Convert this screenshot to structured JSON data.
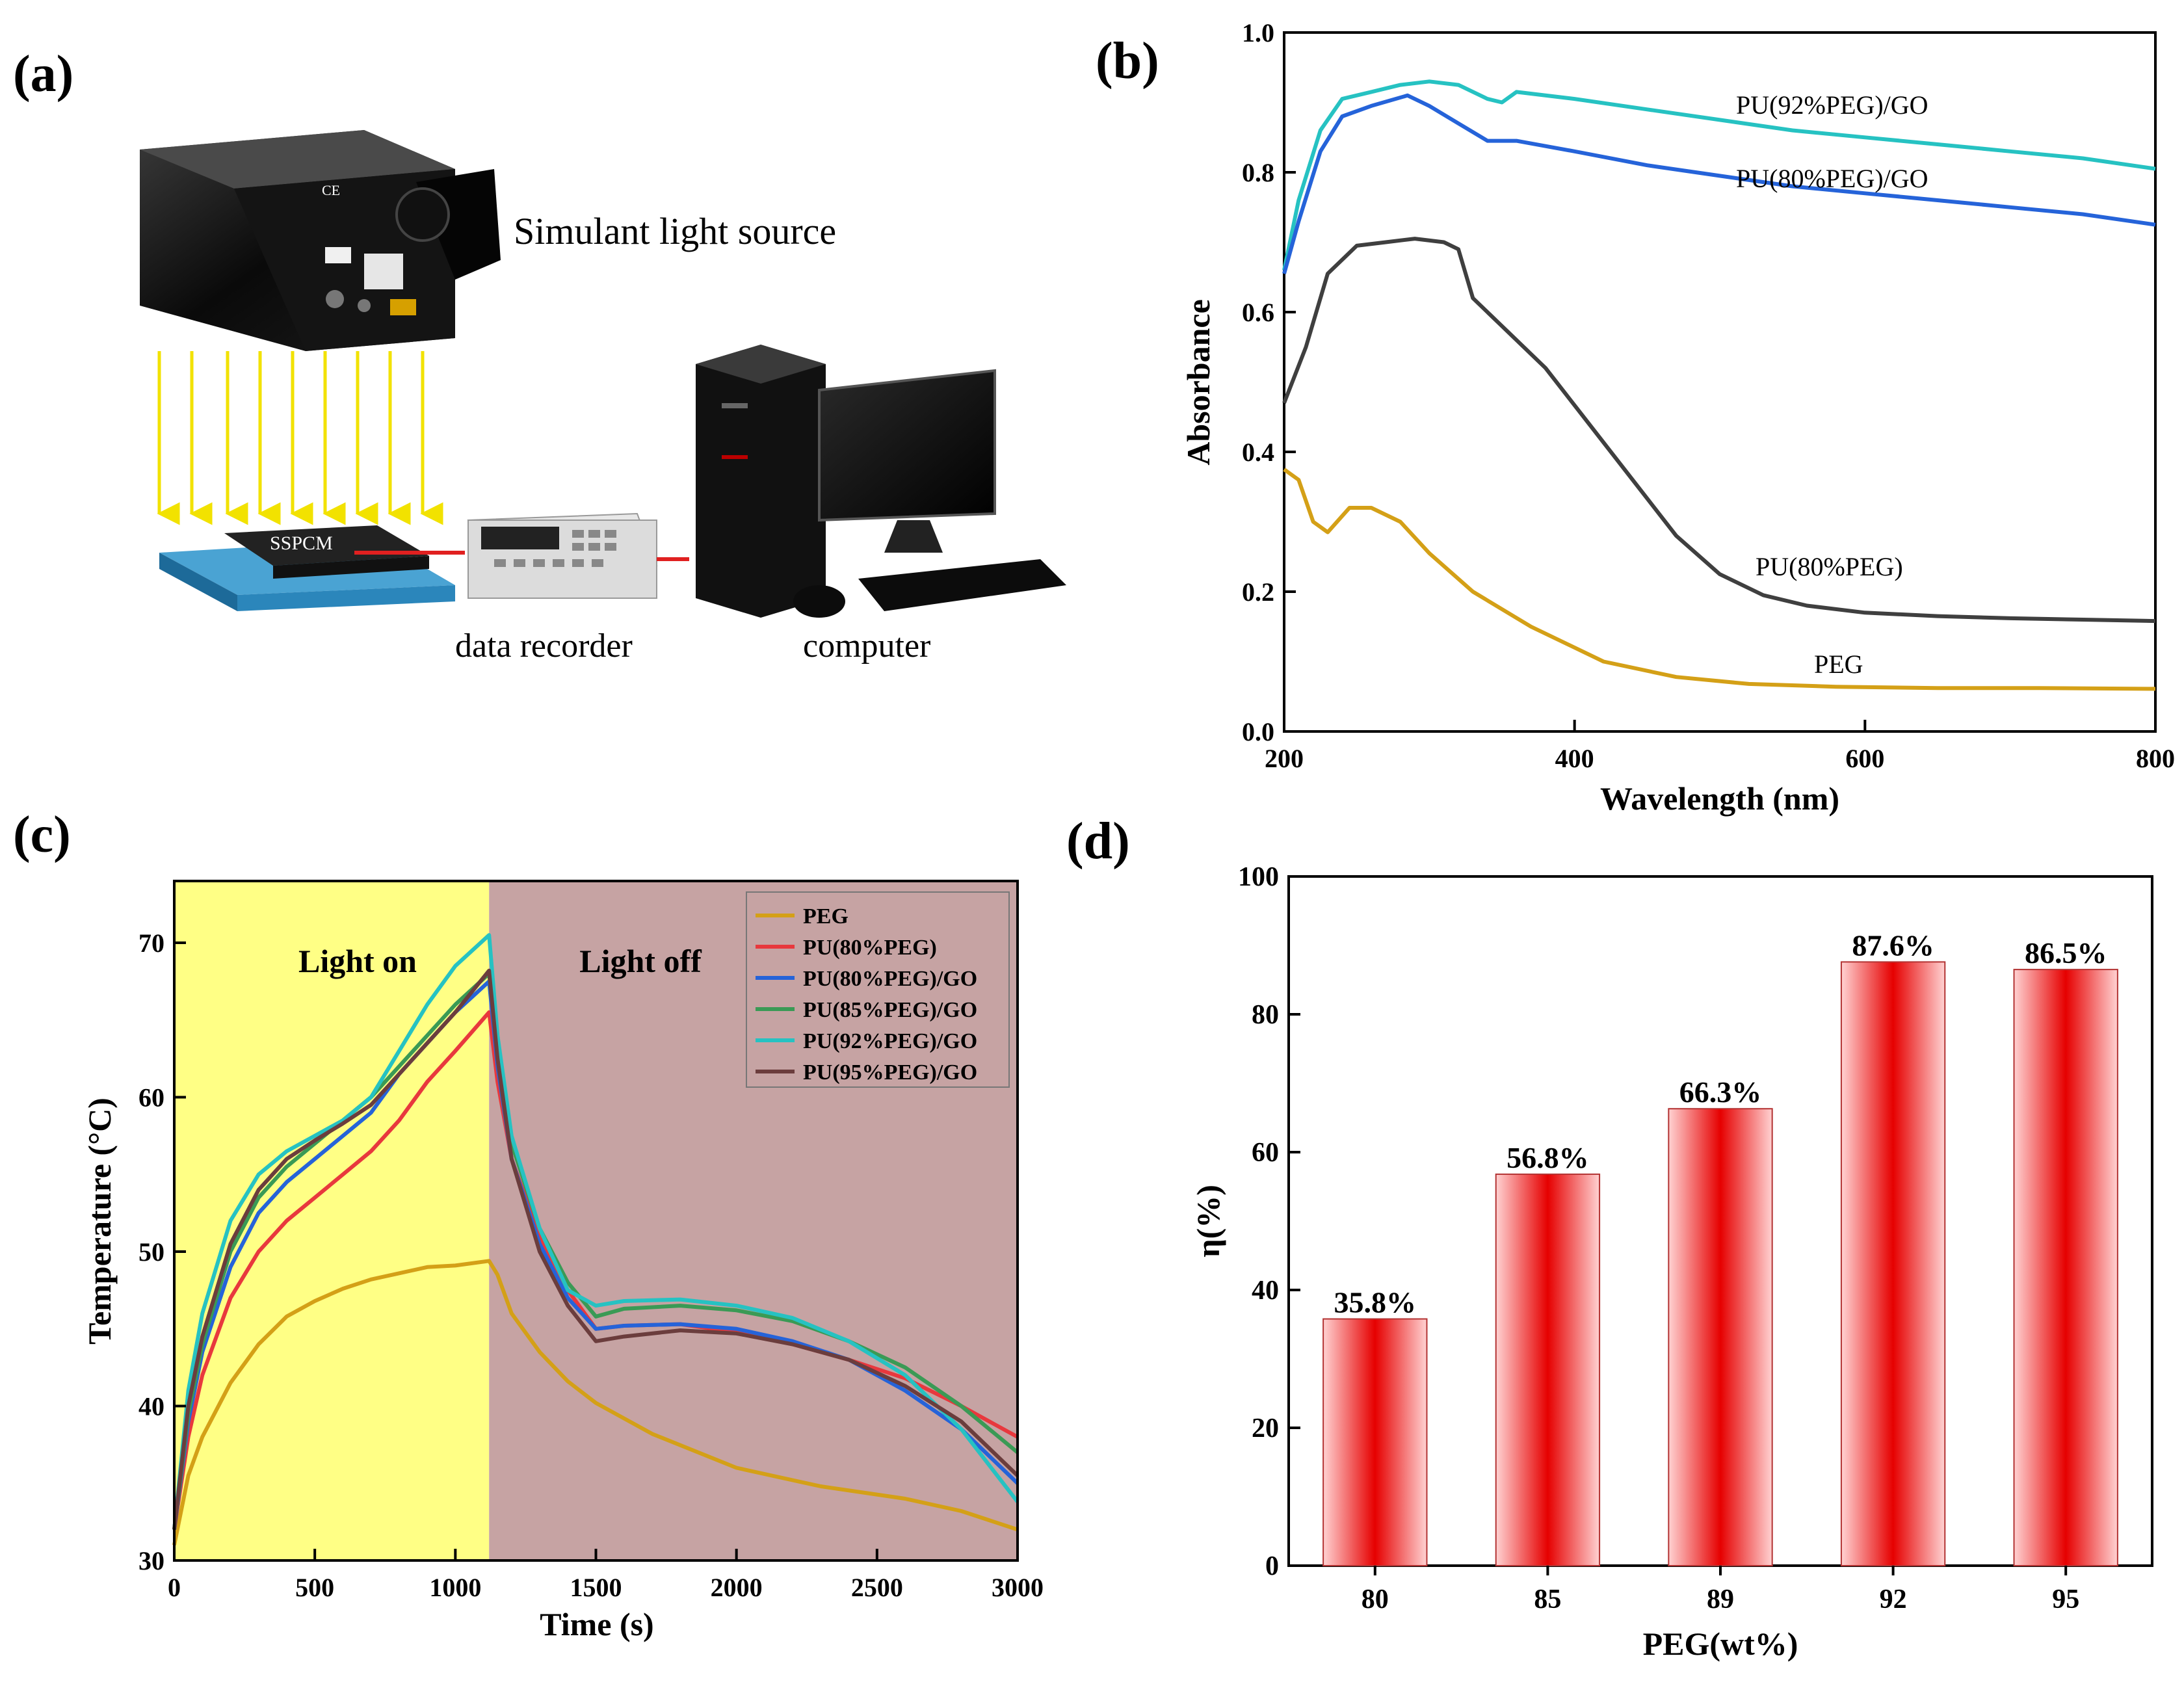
{
  "panels": {
    "a": {
      "label": "(a)",
      "light_source_label": "Simulant light source",
      "sample_label": "SSPCM",
      "recorder_label": "data recorder",
      "computer_label": "computer",
      "device_mark": "CE"
    },
    "b": {
      "label": "(b)"
    },
    "c": {
      "label": "(c)"
    },
    "d": {
      "label": "(d)"
    }
  },
  "colors": {
    "PEG": "#d4a017",
    "PU(80%PEG)": "#3f3f3f",
    "PU(80%PEG)/GO": "#2563d9",
    "PU(92%PEG)/GO": "#26c2c2",
    "c_PU(80%PEG)": "#e8383d",
    "c_PU(85%PEG)/GO": "#3a9a55",
    "c_PU(95%PEG)/GO": "#6b3d3d",
    "light_on_bg": "#ffff85",
    "light_off_bg": "#c6a3a3",
    "bar_edge": "#b33333",
    "bar_center": "#e60000",
    "bar_side": "#ffcccc"
  },
  "chart_data": [
    {
      "id": "b",
      "type": "line",
      "xlabel": "Wavelength (nm)",
      "ylabel": "Absorbance",
      "xlim": [
        200,
        800
      ],
      "ylim": [
        0.0,
        1.0
      ],
      "xticks": [
        200,
        400,
        600,
        800
      ],
      "yticks": [
        0.0,
        0.2,
        0.4,
        0.6,
        0.8,
        1.0
      ],
      "ytick_labels": [
        "0.0",
        "0.2",
        "0.4",
        "0.6",
        "0.8",
        "1.0"
      ],
      "series": [
        {
          "name": "PU(92%PEG)/GO",
          "label": "PU(92%PEG)/GO",
          "x": [
            200,
            210,
            225,
            240,
            260,
            280,
            300,
            320,
            340,
            350,
            360,
            400,
            450,
            500,
            550,
            600,
            650,
            700,
            750,
            800
          ],
          "y": [
            0.66,
            0.76,
            0.86,
            0.905,
            0.915,
            0.925,
            0.93,
            0.925,
            0.905,
            0.9,
            0.915,
            0.905,
            0.89,
            0.875,
            0.86,
            0.85,
            0.84,
            0.83,
            0.82,
            0.805
          ]
        },
        {
          "name": "PU(80%PEG)/GO",
          "label": "PU(80%PEG)/GO",
          "x": [
            200,
            210,
            225,
            240,
            260,
            285,
            300,
            320,
            340,
            360,
            400,
            450,
            500,
            550,
            600,
            650,
            700,
            750,
            800
          ],
          "y": [
            0.655,
            0.73,
            0.83,
            0.88,
            0.895,
            0.91,
            0.895,
            0.87,
            0.845,
            0.845,
            0.83,
            0.81,
            0.795,
            0.78,
            0.77,
            0.76,
            0.75,
            0.74,
            0.725
          ]
        },
        {
          "name": "PU(80%PEG)",
          "label": "PU(80%PEG)",
          "x": [
            200,
            215,
            230,
            250,
            270,
            290,
            310,
            320,
            330,
            350,
            380,
            410,
            440,
            470,
            500,
            530,
            560,
            600,
            650,
            700,
            750,
            800
          ],
          "y": [
            0.47,
            0.55,
            0.655,
            0.695,
            0.7,
            0.705,
            0.7,
            0.69,
            0.62,
            0.58,
            0.52,
            0.44,
            0.36,
            0.28,
            0.225,
            0.195,
            0.18,
            0.17,
            0.165,
            0.162,
            0.16,
            0.158
          ]
        },
        {
          "name": "PEG",
          "label": "PEG",
          "x": [
            200,
            210,
            220,
            230,
            245,
            260,
            280,
            300,
            330,
            370,
            420,
            470,
            520,
            580,
            650,
            720,
            800
          ],
          "y": [
            0.375,
            0.36,
            0.3,
            0.285,
            0.32,
            0.32,
            0.3,
            0.255,
            0.2,
            0.15,
            0.1,
            0.078,
            0.068,
            0.064,
            0.062,
            0.062,
            0.061
          ]
        }
      ]
    },
    {
      "id": "c",
      "type": "line",
      "xlabel": "Time (s)",
      "ylabel": "Temperature (°C)",
      "xlim": [
        0,
        3000
      ],
      "ylim": [
        30,
        74
      ],
      "xticks": [
        0,
        500,
        1000,
        1500,
        2000,
        2500,
        3000
      ],
      "yticks": [
        30,
        40,
        50,
        60,
        70
      ],
      "annotations": [
        "Light on",
        "Light off"
      ],
      "light_switch_x": 1120,
      "legend": [
        "PEG",
        "PU(80%PEG)",
        "PU(80%PEG)/GO",
        "PU(85%PEG)/GO",
        "PU(92%PEG)/GO",
        "PU(95%PEG)/GO"
      ],
      "series": [
        {
          "name": "PEG",
          "x": [
            0,
            50,
            100,
            200,
            300,
            400,
            500,
            600,
            700,
            800,
            900,
            1000,
            1120,
            1150,
            1200,
            1300,
            1400,
            1500,
            1700,
            2000,
            2300,
            2600,
            2800,
            3000
          ],
          "y": [
            31,
            35.5,
            38,
            41.5,
            44,
            45.8,
            46.8,
            47.6,
            48.2,
            48.6,
            49,
            49.1,
            49.4,
            48.5,
            46,
            43.5,
            41.6,
            40.2,
            38.2,
            36,
            34.8,
            34,
            33.2,
            32
          ]
        },
        {
          "name": "PU(80%PEG)",
          "x": [
            0,
            50,
            100,
            200,
            300,
            400,
            500,
            600,
            700,
            800,
            900,
            1000,
            1120,
            1150,
            1200,
            1300,
            1400,
            1500,
            1600,
            1800,
            2000,
            2200,
            2400,
            2600,
            2800,
            3000
          ],
          "y": [
            32,
            38,
            42,
            47,
            50,
            52,
            53.5,
            55,
            56.5,
            58.5,
            61,
            63,
            65.5,
            61,
            56,
            51,
            47.5,
            45,
            45.2,
            45.3,
            44.8,
            44,
            43,
            41.8,
            40,
            38
          ]
        },
        {
          "name": "PU(80%PEG)/GO",
          "x": [
            0,
            50,
            100,
            200,
            300,
            400,
            500,
            600,
            700,
            800,
            900,
            1000,
            1120,
            1150,
            1200,
            1300,
            1400,
            1500,
            1600,
            1800,
            2000,
            2200,
            2400,
            2600,
            2800,
            3000
          ],
          "y": [
            32,
            39,
            43.5,
            49,
            52.5,
            54.5,
            56,
            57.5,
            59,
            61.5,
            63.5,
            65.5,
            67.5,
            62,
            56,
            50.5,
            47,
            45,
            45.2,
            45.3,
            45,
            44.2,
            43,
            41,
            38.5,
            35
          ]
        },
        {
          "name": "PU(85%PEG)/GO",
          "x": [
            0,
            50,
            100,
            200,
            300,
            400,
            500,
            600,
            700,
            800,
            900,
            1000,
            1120,
            1150,
            1200,
            1300,
            1400,
            1500,
            1600,
            1800,
            2000,
            2200,
            2400,
            2600,
            2800,
            3000
          ],
          "y": [
            32,
            39.5,
            44,
            50,
            53.5,
            55.5,
            57,
            58.5,
            60,
            62,
            64,
            66,
            68,
            63,
            57,
            51.5,
            48,
            45.8,
            46.3,
            46.5,
            46.2,
            45.5,
            44.2,
            42.5,
            40,
            37
          ]
        },
        {
          "name": "PU(92%PEG)/GO",
          "x": [
            0,
            50,
            100,
            200,
            300,
            400,
            500,
            600,
            700,
            800,
            900,
            1000,
            1120,
            1150,
            1200,
            1300,
            1400,
            1500,
            1600,
            1800,
            2000,
            2200,
            2400,
            2600,
            2800,
            3000
          ],
          "y": [
            32,
            41,
            46,
            52,
            55,
            56.5,
            57.5,
            58.5,
            60,
            63,
            66,
            68.5,
            70.5,
            64,
            57.5,
            51.5,
            47.5,
            46.5,
            46.8,
            46.9,
            46.5,
            45.7,
            44.2,
            42,
            38.5,
            33.8
          ]
        },
        {
          "name": "PU(95%PEG)/GO",
          "x": [
            0,
            50,
            100,
            200,
            300,
            400,
            500,
            600,
            700,
            800,
            900,
            1000,
            1120,
            1150,
            1200,
            1300,
            1400,
            1500,
            1600,
            1800,
            2000,
            2200,
            2400,
            2600,
            2800,
            3000
          ],
          "y": [
            32,
            40,
            44.5,
            50.5,
            54,
            56,
            57.2,
            58.3,
            59.5,
            61.5,
            63.5,
            65.5,
            68.2,
            62.5,
            56,
            50,
            46.5,
            44.2,
            44.5,
            44.9,
            44.7,
            44,
            43,
            41.3,
            39,
            35.5
          ]
        }
      ]
    },
    {
      "id": "d",
      "type": "bar",
      "xlabel": "PEG(wt%)",
      "ylabel": "η(%)",
      "ylim": [
        0,
        100
      ],
      "yticks": [
        0,
        20,
        40,
        60,
        80,
        100
      ],
      "categories": [
        "80",
        "85",
        "89",
        "92",
        "95"
      ],
      "values": [
        35.8,
        56.8,
        66.3,
        87.6,
        86.5
      ],
      "value_labels": [
        "35.8%",
        "56.8%",
        "66.3%",
        "87.6%",
        "86.5%"
      ]
    }
  ]
}
